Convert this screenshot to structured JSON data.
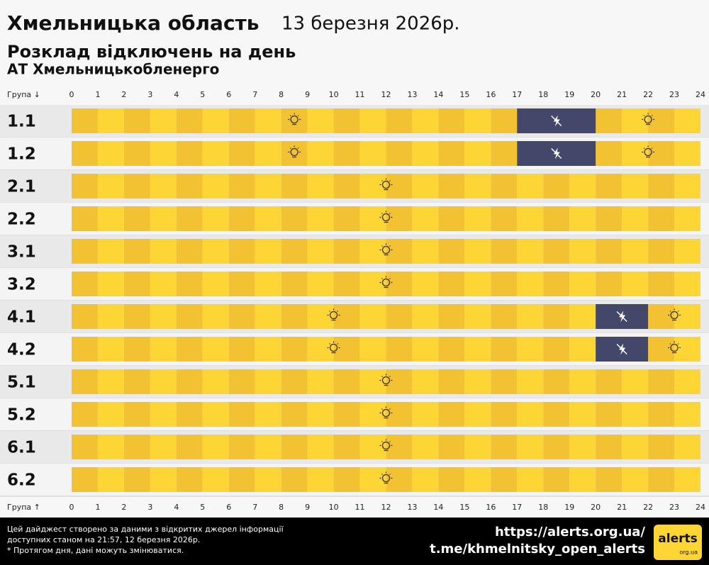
{
  "chart_data": {
    "type": "schedule",
    "title": "Хмельницька область",
    "date": "13 березня 2026р.",
    "subtitle": "Розклад відключень на день",
    "provider": "АТ Хмельницькобленерго",
    "group_label_top": "Група ↓",
    "group_label_bottom": "Група ↑",
    "xlim": [
      0,
      24
    ],
    "xticks": [
      0,
      1,
      2,
      3,
      4,
      5,
      6,
      7,
      8,
      9,
      10,
      11,
      12,
      13,
      14,
      15,
      16,
      17,
      18,
      19,
      20,
      21,
      22,
      23,
      24
    ],
    "on_color": "#fdd535",
    "on_color_alt": "#f2c233",
    "off_color": "#43476a",
    "rows": [
      {
        "label": "1.1",
        "off": [
          [
            17,
            20
          ]
        ]
      },
      {
        "label": "1.2",
        "off": [
          [
            17,
            20
          ]
        ]
      },
      {
        "label": "2.1",
        "off": []
      },
      {
        "label": "2.2",
        "off": []
      },
      {
        "label": "3.1",
        "off": []
      },
      {
        "label": "3.2",
        "off": []
      },
      {
        "label": "4.1",
        "off": [
          [
            20,
            22
          ]
        ]
      },
      {
        "label": "4.2",
        "off": [
          [
            20,
            22
          ]
        ]
      },
      {
        "label": "5.1",
        "off": []
      },
      {
        "label": "5.2",
        "off": []
      },
      {
        "label": "6.1",
        "off": []
      },
      {
        "label": "6.2",
        "off": []
      }
    ]
  },
  "footer": {
    "notes": [
      "Цей дайджест створено за даними з відкритих джерел інформації",
      "доступних станом на 21:57, 12 березня 2026р.",
      "* Протягом дня, дані можуть змінюватися."
    ],
    "links": [
      "https://alerts.org.ua/",
      "t.me/khmelnitsky_open_alerts"
    ],
    "logo": "alerts",
    "logo_sub": "org.ua"
  }
}
